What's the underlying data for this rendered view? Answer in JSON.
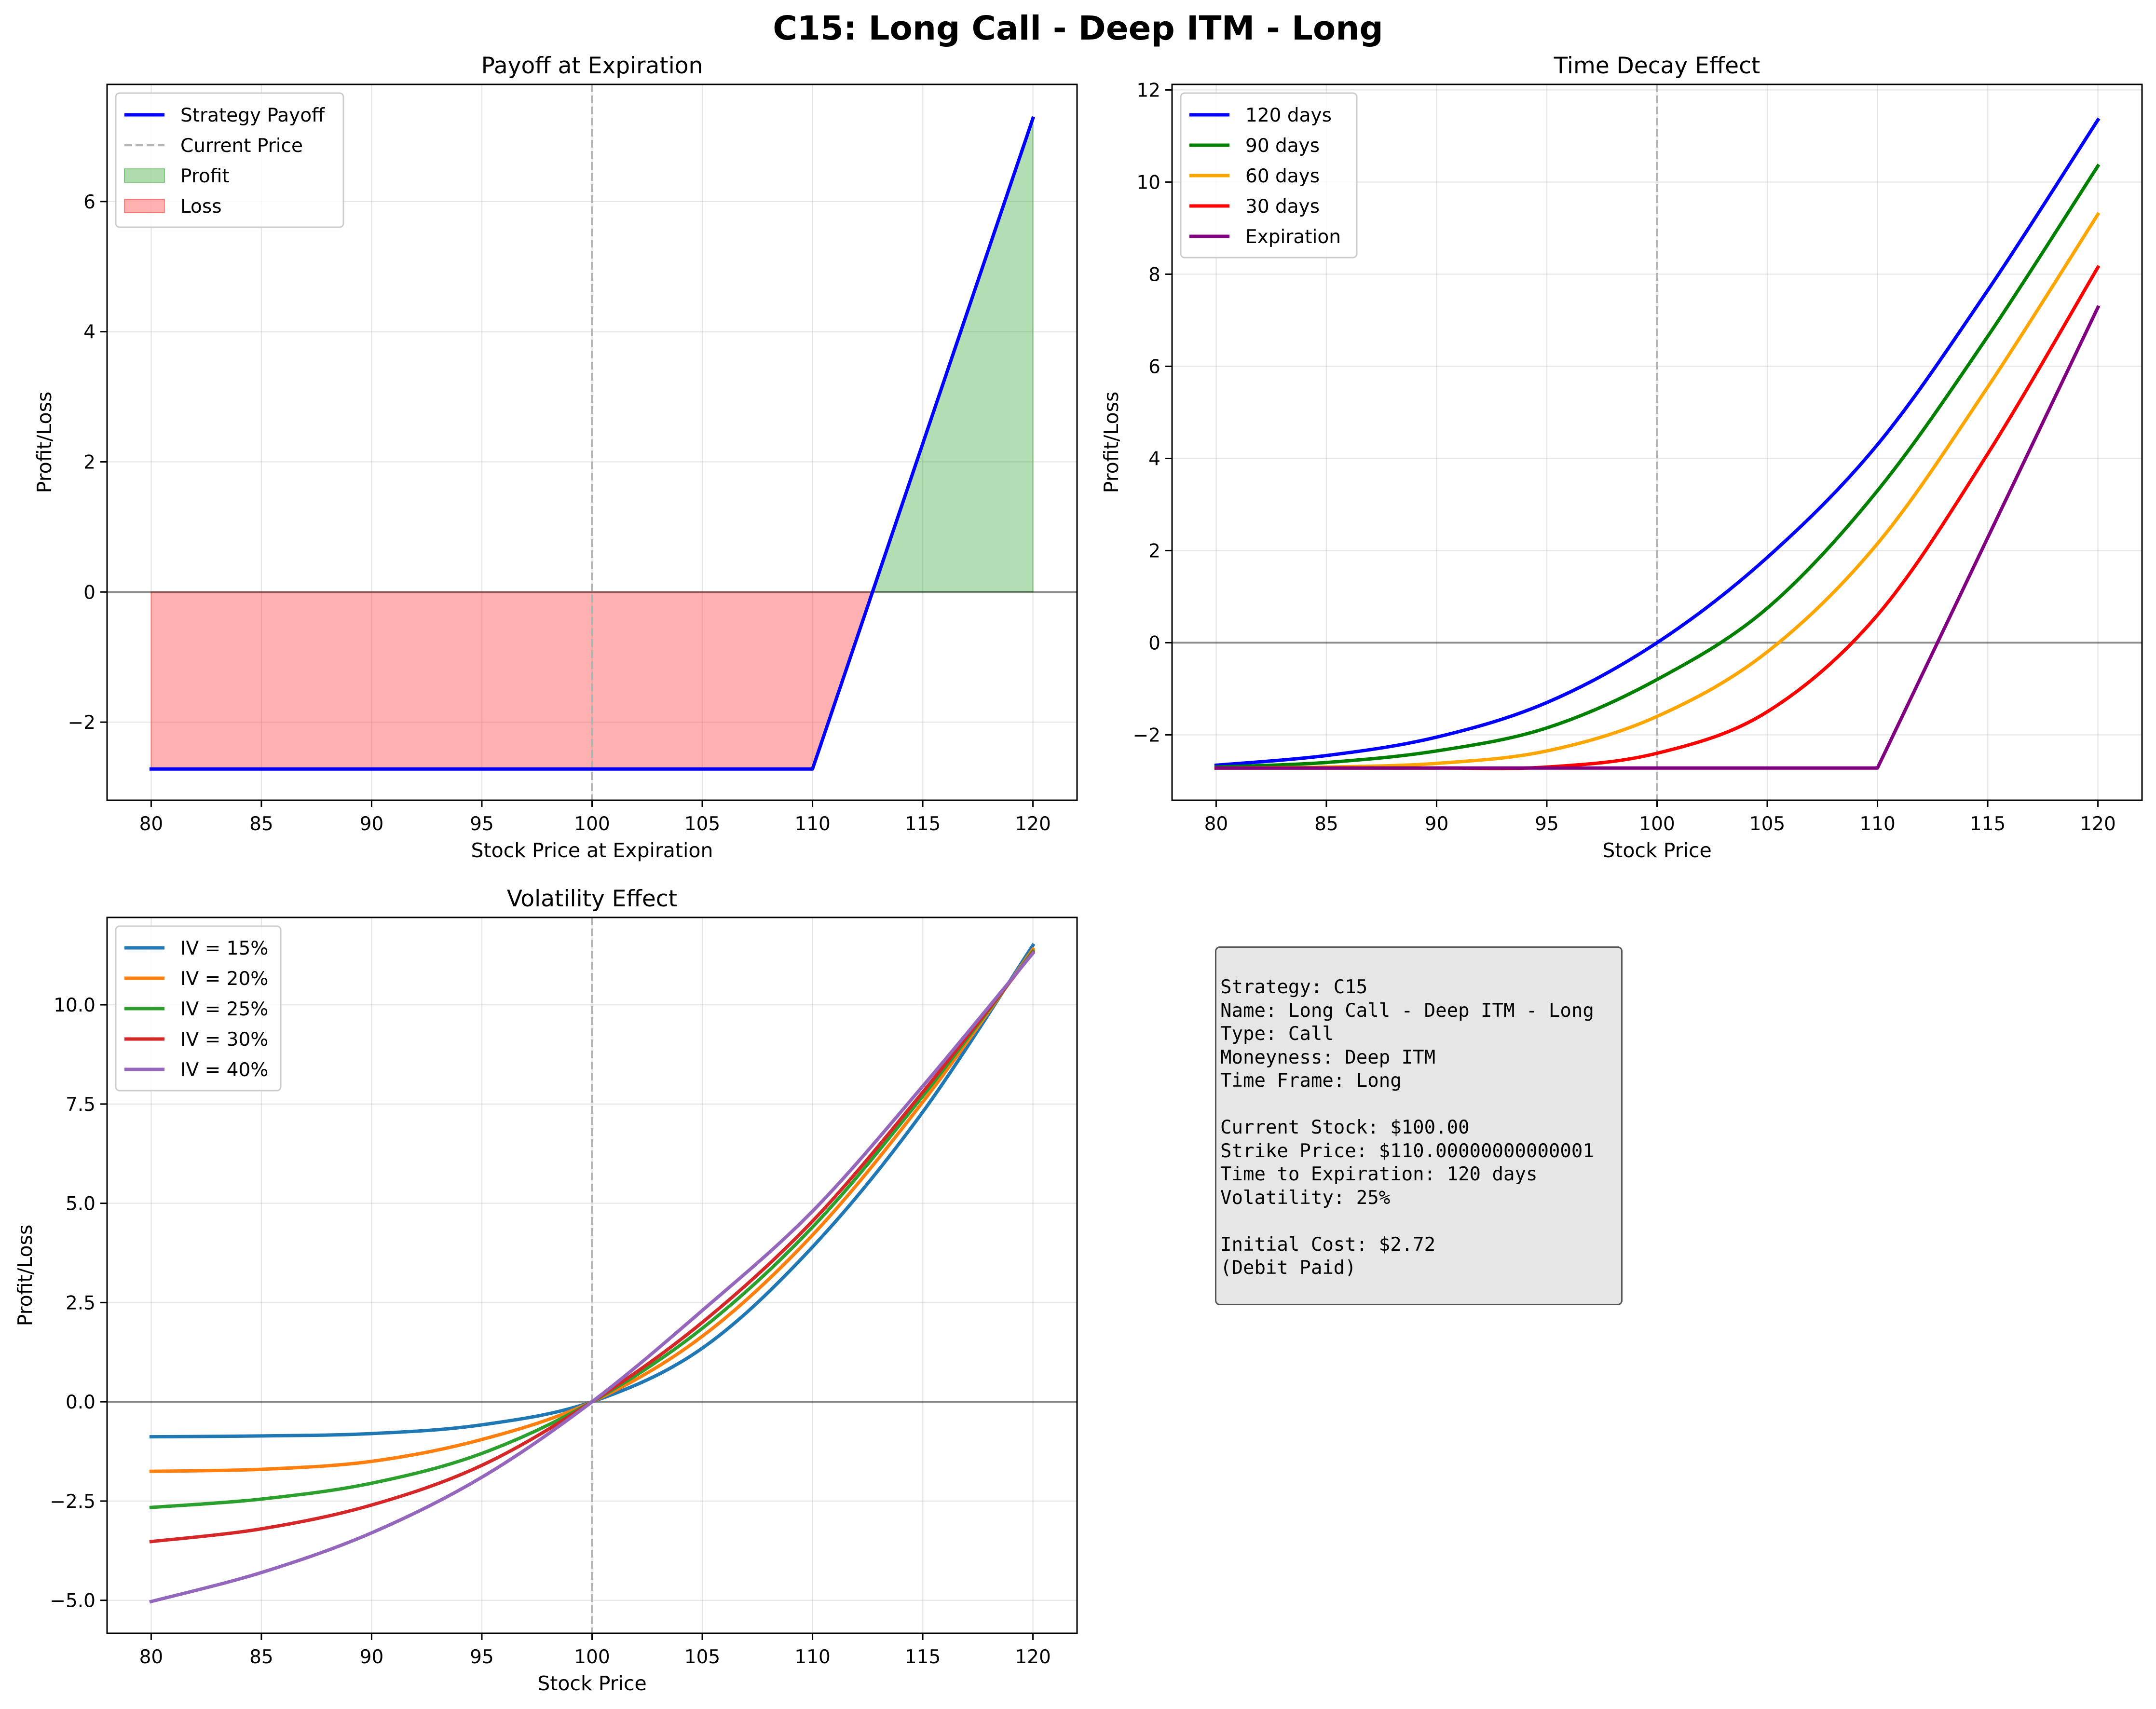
{
  "figure": {
    "title": "C15: Long Call - Deep ITM - Long"
  },
  "chart_data": [
    {
      "id": "payoff",
      "type": "line",
      "title": "Payoff at Expiration",
      "xlabel": "Stock Price at Expiration",
      "ylabel": "Profit/Loss",
      "xlim": [
        78,
        122
      ],
      "ylim": [
        -3.2,
        7.8
      ],
      "xticks": [
        80,
        85,
        90,
        95,
        100,
        105,
        110,
        115,
        120
      ],
      "xtick_labels": [
        "80",
        "85",
        "90",
        "95",
        "100",
        "105",
        "110",
        "115",
        "120"
      ],
      "yticks": [
        -2,
        0,
        2,
        4,
        6
      ],
      "ytick_labels": [
        "−2",
        "0",
        "2",
        "4",
        "6"
      ],
      "grid": true,
      "current_price": 100,
      "series": [
        {
          "name": "Strategy Payoff",
          "color": "#0000ff",
          "x": [
            80,
            110,
            110.3,
            120
          ],
          "y": [
            -2.72,
            -2.72,
            -2.42,
            7.28
          ]
        }
      ],
      "fills": [
        {
          "name": "Profit",
          "color": "#2ca02c",
          "x": [
            112.72,
            120
          ],
          "y": [
            0,
            7.28
          ]
        },
        {
          "name": "Loss",
          "color": "#ff3333",
          "x": [
            80,
            110,
            112.72
          ],
          "y": [
            -2.72,
            -2.72,
            0
          ]
        }
      ],
      "legend": {
        "location": "top-left",
        "entries": [
          {
            "label": "Strategy Payoff",
            "kind": "line",
            "color": "#0000ff"
          },
          {
            "label": "Current Price",
            "kind": "dashed",
            "color": "#b3b3b3"
          },
          {
            "label": "Profit",
            "kind": "patch",
            "color": "#2ca02c"
          },
          {
            "label": "Loss",
            "kind": "patch",
            "color": "#ff3333"
          }
        ]
      }
    },
    {
      "id": "timedecay",
      "type": "line",
      "title": "Time Decay Effect",
      "xlabel": "Stock Price",
      "ylabel": "Profit/Loss",
      "xlim": [
        78,
        122
      ],
      "ylim": [
        -3.42,
        12.12
      ],
      "xticks": [
        80,
        85,
        90,
        95,
        100,
        105,
        110,
        115,
        120
      ],
      "xtick_labels": [
        "80",
        "85",
        "90",
        "95",
        "100",
        "105",
        "110",
        "115",
        "120"
      ],
      "yticks": [
        -2,
        0,
        2,
        4,
        6,
        8,
        10,
        12
      ],
      "ytick_labels": [
        "−2",
        "0",
        "2",
        "4",
        "6",
        "8",
        "10",
        "12"
      ],
      "grid": true,
      "current_price": 100,
      "series": [
        {
          "name": "120 days",
          "color": "#0000ff",
          "x": [
            80,
            85,
            90,
            95,
            100,
            105,
            110,
            115,
            120
          ],
          "y": [
            -2.66,
            -2.45,
            -2.05,
            -1.3,
            0.0,
            1.85,
            4.3,
            7.65,
            11.35
          ]
        },
        {
          "name": "90 days",
          "color": "#008000",
          "x": [
            80,
            85,
            90,
            95,
            100,
            105,
            110,
            115,
            120
          ],
          "y": [
            -2.7,
            -2.6,
            -2.35,
            -1.85,
            -0.8,
            0.75,
            3.3,
            6.65,
            10.35
          ]
        },
        {
          "name": "60 days",
          "color": "#ffa500",
          "x": [
            80,
            85,
            90,
            95,
            100,
            105,
            110,
            115,
            120
          ],
          "y": [
            -2.72,
            -2.7,
            -2.62,
            -2.35,
            -1.6,
            -0.2,
            2.15,
            5.55,
            9.3
          ]
        },
        {
          "name": "30 days",
          "color": "#ff0000",
          "x": [
            80,
            85,
            90,
            95,
            100,
            105,
            110,
            115,
            120
          ],
          "y": [
            -2.72,
            -2.72,
            -2.72,
            -2.7,
            -2.4,
            -1.5,
            0.6,
            4.1,
            8.15
          ]
        },
        {
          "name": "Expiration",
          "color": "#800080",
          "x": [
            80,
            110,
            110.3,
            120
          ],
          "y": [
            -2.72,
            -2.72,
            -2.42,
            7.28
          ]
        }
      ],
      "legend": {
        "location": "top-left",
        "entries": [
          {
            "label": "120 days",
            "kind": "line",
            "color": "#0000ff"
          },
          {
            "label": "90 days",
            "kind": "line",
            "color": "#008000"
          },
          {
            "label": "60 days",
            "kind": "line",
            "color": "#ffa500"
          },
          {
            "label": "30 days",
            "kind": "line",
            "color": "#ff0000"
          },
          {
            "label": "Expiration",
            "kind": "line",
            "color": "#800080"
          }
        ]
      }
    },
    {
      "id": "volatility",
      "type": "line",
      "title": "Volatility Effect",
      "xlabel": "Stock Price",
      "ylabel": "Profit/Loss",
      "xlim": [
        78,
        122
      ],
      "ylim": [
        -5.83,
        12.2
      ],
      "xticks": [
        80,
        85,
        90,
        95,
        100,
        105,
        110,
        115,
        120
      ],
      "xtick_labels": [
        "80",
        "85",
        "90",
        "95",
        "100",
        "105",
        "110",
        "115",
        "120"
      ],
      "yticks": [
        -5,
        -2.5,
        0,
        2.5,
        5,
        7.5,
        10
      ],
      "ytick_labels": [
        "−5.0",
        "−2.5",
        "0.0",
        "2.5",
        "5.0",
        "7.5",
        "10.0"
      ],
      "grid": true,
      "current_price": 100,
      "series": [
        {
          "name": "IV = 15%",
          "color": "#1f77b4",
          "x": [
            80,
            85,
            90,
            95,
            100,
            105,
            110,
            115,
            120
          ],
          "y": [
            -0.88,
            -0.86,
            -0.8,
            -0.58,
            0.0,
            1.35,
            3.9,
            7.3,
            11.5
          ]
        },
        {
          "name": "IV = 20%",
          "color": "#ff7f0e",
          "x": [
            80,
            85,
            90,
            95,
            100,
            105,
            110,
            115,
            120
          ],
          "y": [
            -1.75,
            -1.7,
            -1.5,
            -0.95,
            0.0,
            1.65,
            4.2,
            7.55,
            11.4
          ]
        },
        {
          "name": "IV = 25%",
          "color": "#2ca02c",
          "x": [
            80,
            85,
            90,
            95,
            100,
            105,
            110,
            115,
            120
          ],
          "y": [
            -2.66,
            -2.45,
            -2.05,
            -1.3,
            0.0,
            1.85,
            4.4,
            7.7,
            11.35
          ]
        },
        {
          "name": "IV = 30%",
          "color": "#d62728",
          "x": [
            80,
            85,
            90,
            95,
            100,
            105,
            110,
            115,
            120
          ],
          "y": [
            -3.52,
            -3.2,
            -2.6,
            -1.6,
            0.0,
            2.0,
            4.55,
            7.8,
            11.32
          ]
        },
        {
          "name": "IV = 40%",
          "color": "#9467bd",
          "x": [
            80,
            85,
            90,
            95,
            100,
            105,
            110,
            115,
            120
          ],
          "y": [
            -5.03,
            -4.3,
            -3.3,
            -1.9,
            0.0,
            2.3,
            4.8,
            7.95,
            11.3
          ]
        }
      ],
      "legend": {
        "location": "top-left",
        "entries": [
          {
            "label": "IV = 15%",
            "kind": "line",
            "color": "#1f77b4"
          },
          {
            "label": "IV = 20%",
            "kind": "line",
            "color": "#ff7f0e"
          },
          {
            "label": "IV = 25%",
            "kind": "line",
            "color": "#2ca02c"
          },
          {
            "label": "IV = 30%",
            "kind": "line",
            "color": "#d62728"
          },
          {
            "label": "IV = 40%",
            "kind": "line",
            "color": "#9467bd"
          }
        ]
      }
    }
  ],
  "info_panel": {
    "lines": [
      "Strategy: C15",
      "Name: Long Call - Deep ITM - Long",
      "Type: Call",
      "Moneyness: Deep ITM",
      "Time Frame: Long",
      "",
      "Current Stock: $100.00",
      "Strike Price: $110.00000000000001",
      "Time to Expiration: 120 days",
      "Volatility: 25%",
      "",
      "Initial Cost: $2.72",
      "(Debit Paid)"
    ]
  }
}
